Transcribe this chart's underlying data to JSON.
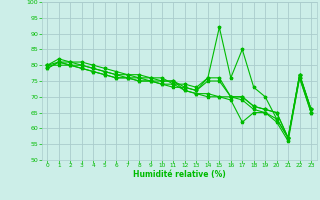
{
  "title": "",
  "xlabel": "Humidité relative (%)",
  "ylabel": "",
  "xlim": [
    -0.5,
    23.5
  ],
  "ylim": [
    50,
    100
  ],
  "yticks": [
    50,
    55,
    60,
    65,
    70,
    75,
    80,
    85,
    90,
    95,
    100
  ],
  "xticks": [
    0,
    1,
    2,
    3,
    4,
    5,
    6,
    7,
    8,
    9,
    10,
    11,
    12,
    13,
    14,
    15,
    16,
    17,
    18,
    19,
    20,
    21,
    22,
    23
  ],
  "bg_color": "#cceee8",
  "grid_color": "#aacccc",
  "line_color": "#00bb00",
  "lines": [
    [
      79,
      81,
      80,
      80,
      79,
      78,
      77,
      76,
      76,
      75,
      75,
      75,
      72,
      71,
      70,
      70,
      69,
      62,
      65,
      65,
      62,
      56,
      76,
      65
    ],
    [
      79,
      81,
      81,
      81,
      80,
      79,
      78,
      77,
      77,
      76,
      76,
      74,
      74,
      73,
      76,
      92,
      76,
      85,
      73,
      70,
      63,
      57,
      77,
      66
    ],
    [
      80,
      81,
      80,
      79,
      78,
      77,
      76,
      76,
      75,
      75,
      74,
      73,
      73,
      72,
      75,
      75,
      70,
      70,
      67,
      66,
      65,
      57,
      77,
      66
    ],
    [
      80,
      82,
      81,
      80,
      79,
      78,
      77,
      77,
      76,
      76,
      75,
      75,
      73,
      72,
      76,
      76,
      70,
      70,
      67,
      66,
      65,
      57,
      77,
      66
    ],
    [
      80,
      80,
      80,
      79,
      78,
      77,
      76,
      76,
      75,
      75,
      74,
      74,
      72,
      71,
      71,
      70,
      70,
      69,
      66,
      65,
      63,
      57,
      76,
      65
    ]
  ]
}
